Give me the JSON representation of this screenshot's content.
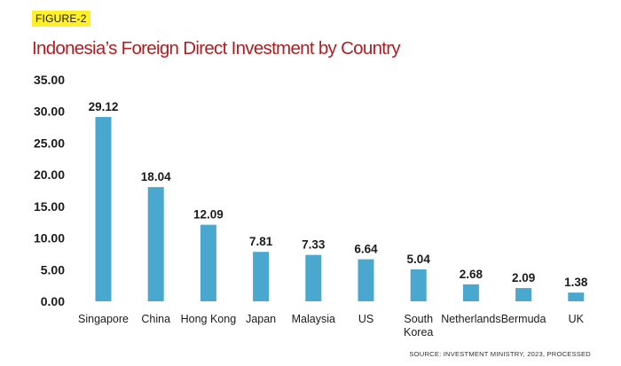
{
  "figure_label": "FIGURE-2",
  "source": "SOURCE: INVESTMENT MINISTRY, 2023, PROCESSED",
  "colors": {
    "bar": "#4aa8cf",
    "title": "#b01d22",
    "tag_bg": "#fff02a",
    "text": "#1b1b1b"
  },
  "chart_data": {
    "type": "bar",
    "title": "Indonesia’s Foreign Direct Investment by Country",
    "xlabel": "",
    "ylabel": "",
    "ylim": [
      0,
      35
    ],
    "grid": false,
    "legend": "none",
    "yticks": [
      "0.00",
      "5.00",
      "10.00",
      "15.00",
      "20.00",
      "25.00",
      "30.00",
      "35.00"
    ],
    "categories": [
      "Singapore",
      "China",
      "Hong Kong",
      "Japan",
      "Malaysia",
      "US",
      "South Korea",
      "Netherlands",
      "Bermuda",
      "UK"
    ],
    "values": [
      29.12,
      18.04,
      12.09,
      7.81,
      7.33,
      6.64,
      5.04,
      2.68,
      2.09,
      1.38
    ],
    "value_labels": [
      "29.12",
      "18.04",
      "12.09",
      "7.81",
      "7.33",
      "6.64",
      "5.04",
      "2.68",
      "2.09",
      "1.38"
    ]
  }
}
